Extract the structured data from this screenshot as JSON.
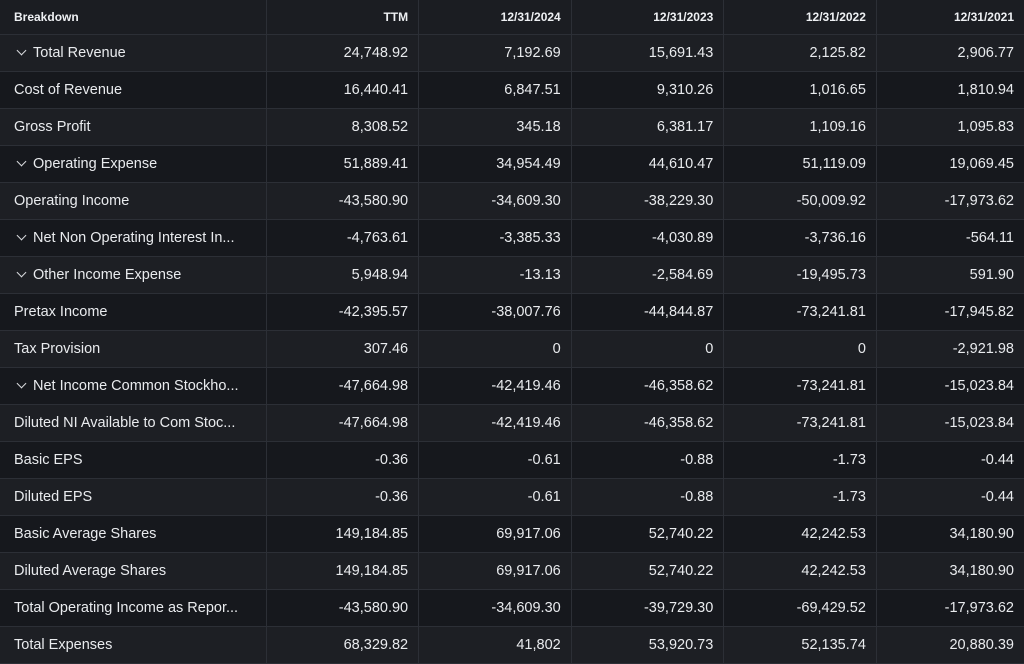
{
  "header": {
    "breakdown": "Breakdown",
    "columns": [
      "TTM",
      "12/31/2024",
      "12/31/2023",
      "12/31/2022",
      "12/31/2021"
    ]
  },
  "rows": [
    {
      "label": "Total Revenue",
      "expandable": true,
      "values": [
        "24,748.92",
        "7,192.69",
        "15,691.43",
        "2,125.82",
        "2,906.77"
      ]
    },
    {
      "label": "Cost of Revenue",
      "expandable": false,
      "values": [
        "16,440.41",
        "6,847.51",
        "9,310.26",
        "1,016.65",
        "1,810.94"
      ]
    },
    {
      "label": "Gross Profit",
      "expandable": false,
      "values": [
        "8,308.52",
        "345.18",
        "6,381.17",
        "1,109.16",
        "1,095.83"
      ]
    },
    {
      "label": "Operating Expense",
      "expandable": true,
      "values": [
        "51,889.41",
        "34,954.49",
        "44,610.47",
        "51,119.09",
        "19,069.45"
      ]
    },
    {
      "label": "Operating Income",
      "expandable": false,
      "values": [
        "-43,580.90",
        "-34,609.30",
        "-38,229.30",
        "-50,009.92",
        "-17,973.62"
      ]
    },
    {
      "label": "Net Non Operating Interest In...",
      "expandable": true,
      "values": [
        "-4,763.61",
        "-3,385.33",
        "-4,030.89",
        "-3,736.16",
        "-564.11"
      ]
    },
    {
      "label": "Other Income Expense",
      "expandable": true,
      "values": [
        "5,948.94",
        "-13.13",
        "-2,584.69",
        "-19,495.73",
        "591.90"
      ]
    },
    {
      "label": "Pretax Income",
      "expandable": false,
      "values": [
        "-42,395.57",
        "-38,007.76",
        "-44,844.87",
        "-73,241.81",
        "-17,945.82"
      ]
    },
    {
      "label": "Tax Provision",
      "expandable": false,
      "values": [
        "307.46",
        "0",
        "0",
        "0",
        "-2,921.98"
      ]
    },
    {
      "label": "Net Income Common Stockho...",
      "expandable": true,
      "values": [
        "-47,664.98",
        "-42,419.46",
        "-46,358.62",
        "-73,241.81",
        "-15,023.84"
      ]
    },
    {
      "label": "Diluted NI Available to Com Stoc...",
      "expandable": false,
      "values": [
        "-47,664.98",
        "-42,419.46",
        "-46,358.62",
        "-73,241.81",
        "-15,023.84"
      ]
    },
    {
      "label": "Basic EPS",
      "expandable": false,
      "values": [
        "-0.36",
        "-0.61",
        "-0.88",
        "-1.73",
        "-0.44"
      ]
    },
    {
      "label": "Diluted EPS",
      "expandable": false,
      "values": [
        "-0.36",
        "-0.61",
        "-0.88",
        "-1.73",
        "-0.44"
      ]
    },
    {
      "label": "Basic Average Shares",
      "expandable": false,
      "values": [
        "149,184.85",
        "69,917.06",
        "52,740.22",
        "42,242.53",
        "34,180.90"
      ]
    },
    {
      "label": "Diluted Average Shares",
      "expandable": false,
      "values": [
        "149,184.85",
        "69,917.06",
        "52,740.22",
        "42,242.53",
        "34,180.90"
      ]
    },
    {
      "label": "Total Operating Income as Repor...",
      "expandable": false,
      "values": [
        "-43,580.90",
        "-34,609.30",
        "-39,729.30",
        "-69,429.52",
        "-17,973.62"
      ]
    },
    {
      "label": "Total Expenses",
      "expandable": false,
      "values": [
        "68,329.82",
        "41,802",
        "53,920.73",
        "52,135.74",
        "20,880.39"
      ]
    }
  ]
}
